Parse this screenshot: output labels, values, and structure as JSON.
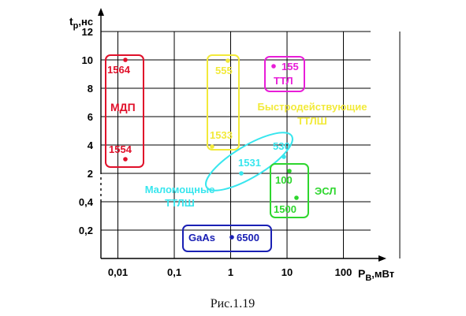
{
  "chart_data": {
    "type": "scatter",
    "x_scale": "log",
    "y_scale": "piecewise",
    "xlabel": "P",
    "xlabel_sub": "В",
    "xlabel_unit": ",мВт",
    "ylabel": "t",
    "ylabel_sub": "р",
    "ylabel_unit": ",нс",
    "x_ticks": [
      {
        "value": 0.01,
        "label": "0,01"
      },
      {
        "value": 0.1,
        "label": "0,1"
      },
      {
        "value": 1,
        "label": "1"
      },
      {
        "value": 10,
        "label": "10"
      },
      {
        "value": 100,
        "label": "100"
      }
    ],
    "y_ticks": [
      {
        "value": 0.2,
        "label": "0,2"
      },
      {
        "value": 0.4,
        "label": "0,4"
      },
      {
        "value": 2,
        "label": "2"
      },
      {
        "value": 4,
        "label": "4"
      },
      {
        "value": 6,
        "label": "6"
      },
      {
        "value": 8,
        "label": "8"
      },
      {
        "value": 10,
        "label": "10"
      },
      {
        "value": 12,
        "label": "12"
      }
    ],
    "y_break_after": 0.4,
    "grid": true,
    "points": [
      {
        "name": "1564",
        "x": 0.027,
        "y": 10,
        "color": "#e0102a"
      },
      {
        "name": "1554",
        "x": 0.027,
        "y": 3,
        "color": "#e0102a"
      },
      {
        "name": "555",
        "x": 1.8,
        "y": 10,
        "color": "#f2ea3a"
      },
      {
        "name": "1533",
        "x": 1.0,
        "y": 4,
        "color": "#f2ea3a"
      },
      {
        "name": "155",
        "x": 13,
        "y": 9.5,
        "color": "#e81ed8"
      },
      {
        "name": "530",
        "x": 20,
        "y": 3.2,
        "color": "#38e6ee"
      },
      {
        "name": "1531",
        "x": 3.5,
        "y": 2,
        "color": "#38e6ee"
      },
      {
        "name": "100",
        "x": 22,
        "y": 2.2,
        "color": "#2ed62e"
      },
      {
        "name": "1500",
        "x": 32,
        "y": 0.42,
        "color": "#2ed62e"
      },
      {
        "name": "6500",
        "x": 2.3,
        "y": 0.15,
        "color": "#1a20b4"
      }
    ],
    "groups": [
      {
        "name": "МДП",
        "color": "#e0102a",
        "shape": "rect"
      },
      {
        "name": "ТТЛ",
        "color": "#e81ed8",
        "shape": "rect"
      },
      {
        "name": "Быстродействующие ТТЛШ",
        "lines": [
          "Быстродействующие",
          "ТТЛШ"
        ],
        "color": "#f2ea3a",
        "shape": "rect"
      },
      {
        "name": "Маломощные ТТЛШ",
        "lines": [
          "Маломощные",
          "ТТЛШ"
        ],
        "color": "#38e6ee",
        "shape": "ellipse"
      },
      {
        "name": "ЭСЛ",
        "color": "#2ed62e",
        "shape": "rect"
      },
      {
        "name": "GaAs",
        "color": "#1a20b4",
        "shape": "rect"
      }
    ]
  },
  "caption": "Рис.1.19"
}
